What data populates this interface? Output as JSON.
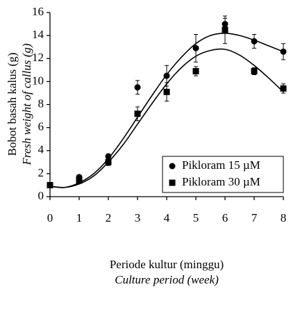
{
  "chart_data": {
    "type": "scatter",
    "ylabel": [
      "Bobot basah kalus (g)",
      "Fresh weight of callus (g)"
    ],
    "xlabel": [
      "Periode kultur (minggu)",
      "Culture period (week)"
    ],
    "x": [
      0,
      1,
      2,
      3,
      4,
      5,
      6,
      7,
      8
    ],
    "xlim": [
      0,
      8
    ],
    "xticks": [
      0,
      1,
      2,
      3,
      4,
      5,
      6,
      7,
      8
    ],
    "ylim": [
      0,
      16
    ],
    "yticks": [
      0,
      2,
      4,
      6,
      8,
      10,
      12,
      14,
      16
    ],
    "legend": "lower right",
    "fit_x": [
      0,
      0.5,
      1,
      1.5,
      2,
      2.5,
      3,
      3.5,
      4,
      4.5,
      5,
      5.5,
      6,
      6.5,
      7,
      7.5,
      8
    ],
    "series": [
      {
        "name": "Pikloram 15 µM",
        "color": "#000000",
        "marker": "circle",
        "values": [
          1.0,
          1.7,
          3.5,
          9.5,
          10.5,
          12.9,
          15.0,
          13.5,
          12.6
        ],
        "errors": [
          0.1,
          0.15,
          0.2,
          0.6,
          0.9,
          1.2,
          0.5,
          0.6,
          0.7
        ],
        "fit": [
          0.9,
          0.8,
          1.2,
          2.0,
          3.3,
          5.0,
          6.9,
          8.8,
          10.6,
          12.1,
          13.3,
          14.0,
          14.2,
          14.0,
          13.6,
          13.1,
          12.6
        ]
      },
      {
        "name": "Pikloram 30 µM",
        "color": "#000000",
        "marker": "square",
        "values": [
          1.0,
          1.4,
          3.0,
          7.2,
          9.1,
          10.9,
          14.5,
          10.9,
          9.4
        ],
        "errors": [
          0.1,
          0.1,
          0.3,
          0.6,
          0.8,
          0.4,
          1.2,
          0.3,
          0.4
        ],
        "fit": [
          0.9,
          0.8,
          1.1,
          1.8,
          3.0,
          4.5,
          6.3,
          8.1,
          9.8,
          11.2,
          12.2,
          12.7,
          12.8,
          12.3,
          11.4,
          10.3,
          9.1
        ]
      }
    ]
  }
}
